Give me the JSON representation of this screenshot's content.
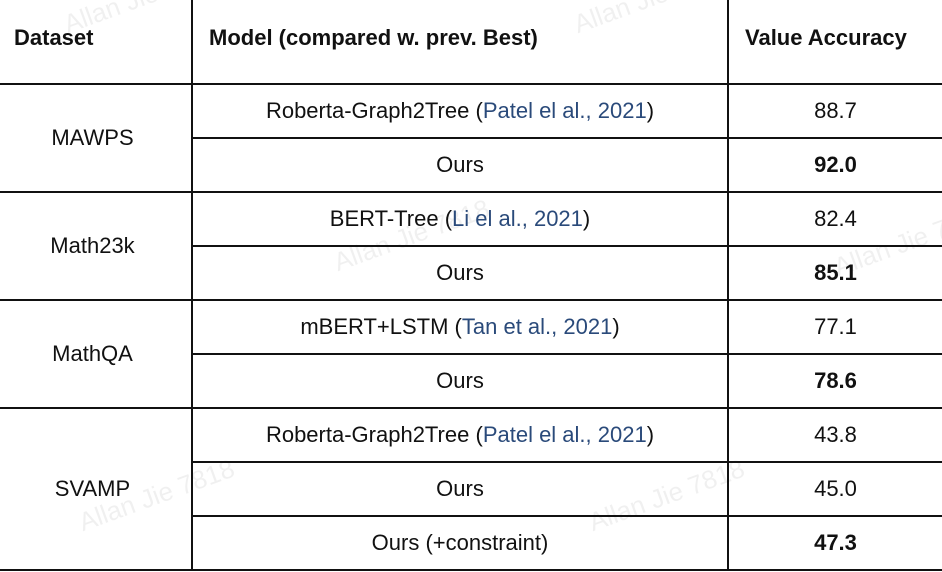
{
  "table": {
    "headers": {
      "dataset": "Dataset",
      "model": "Model (compared w. prev. Best)",
      "accuracy": "Value Accuracy"
    },
    "groups": [
      {
        "dataset": "MAWPS",
        "rows": [
          {
            "model": "Roberta-Graph2Tree",
            "citation": "Patel el al., 2021",
            "accuracy": "88.7",
            "best": false
          },
          {
            "model": "Ours",
            "citation": "",
            "accuracy": "92.0",
            "best": true
          }
        ]
      },
      {
        "dataset": "Math23k",
        "rows": [
          {
            "model": "BERT-Tree",
            "citation": "Li el al., 2021",
            "accuracy": "82.4",
            "best": false
          },
          {
            "model": "Ours",
            "citation": "",
            "accuracy": "85.1",
            "best": true
          }
        ]
      },
      {
        "dataset": "MathQA",
        "rows": [
          {
            "model": "mBERT+LSTM",
            "citation": "Tan et al., 2021",
            "accuracy": "77.1",
            "best": false
          },
          {
            "model": "Ours",
            "citation": "",
            "accuracy": "78.6",
            "best": true
          }
        ]
      },
      {
        "dataset": "SVAMP",
        "rows": [
          {
            "model": "Roberta-Graph2Tree",
            "citation": "Patel el al., 2021",
            "accuracy": "43.8",
            "best": false
          },
          {
            "model": "Ours",
            "citation": "",
            "accuracy": "45.0",
            "best": false
          },
          {
            "model": "Ours (+constraint)",
            "citation": "",
            "accuracy": "47.3",
            "best": true
          }
        ]
      }
    ]
  },
  "watermark": {
    "text": "Allan Jie 7818"
  },
  "colors": {
    "citation": "#2a4a7a",
    "rule": "#111111"
  }
}
